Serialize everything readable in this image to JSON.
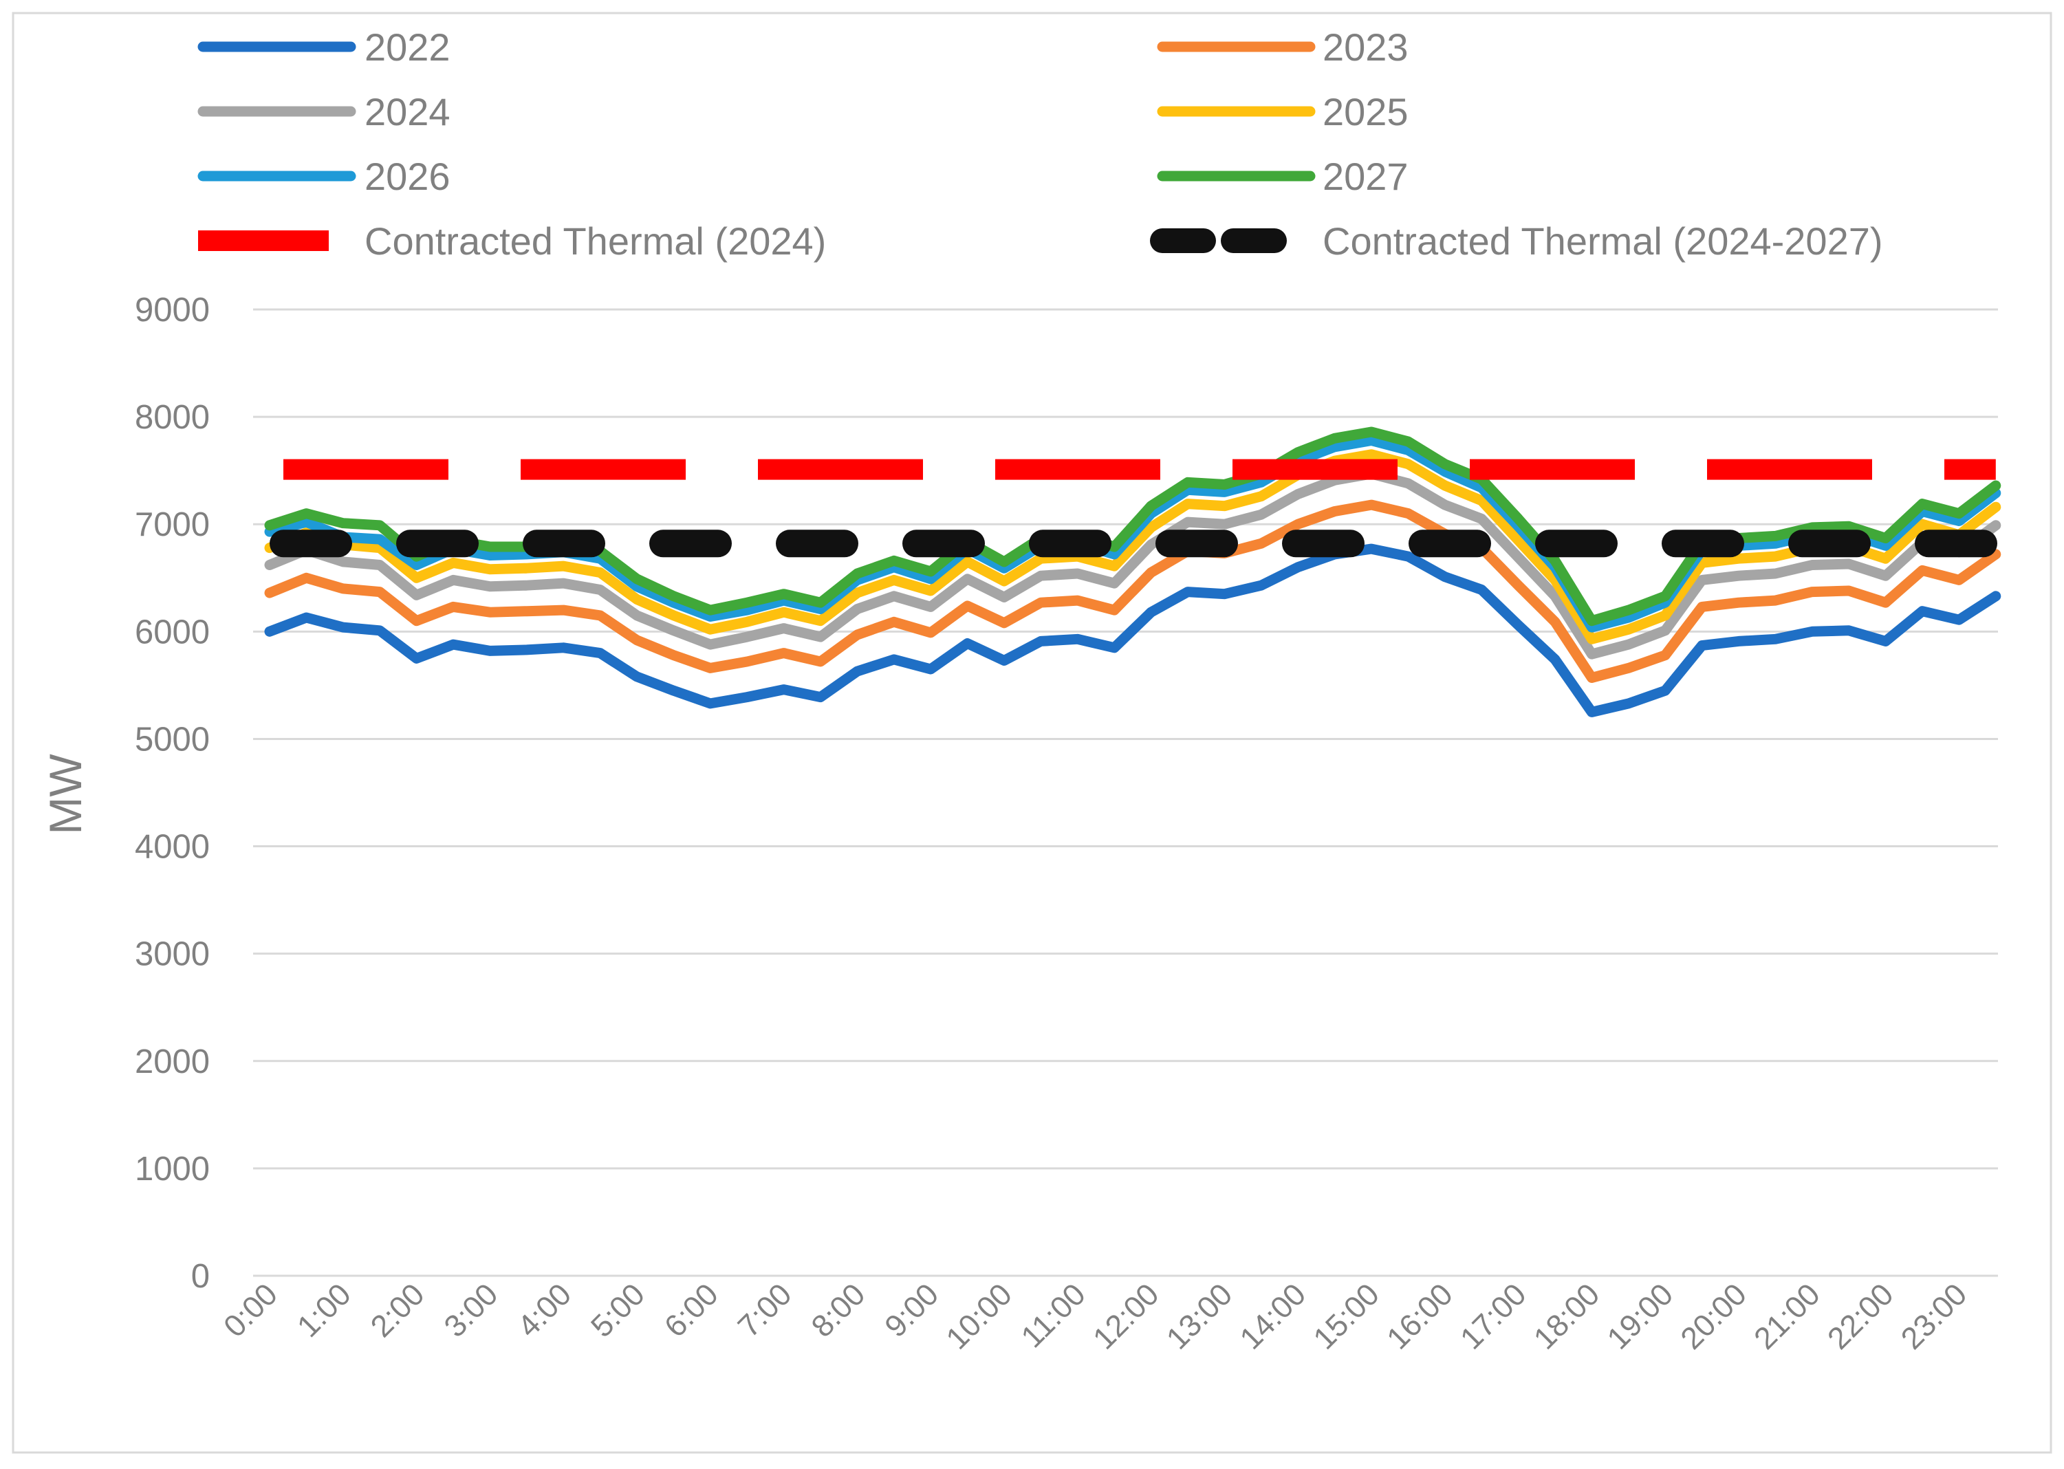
{
  "chart_data": {
    "type": "line",
    "title": "",
    "xlabel": "",
    "ylabel": "MW",
    "ylim": [
      0,
      9000
    ],
    "yticks": [
      0,
      1000,
      2000,
      3000,
      4000,
      5000,
      6000,
      7000,
      8000,
      9000
    ],
    "grid": "horizontal",
    "legend_position": "top",
    "categories": [
      "0:00",
      "0:30",
      "1:00",
      "1:30",
      "2:00",
      "2:30",
      "3:00",
      "3:30",
      "4:00",
      "4:30",
      "5:00",
      "5:30",
      "6:00",
      "6:30",
      "7:00",
      "7:30",
      "8:00",
      "8:30",
      "9:00",
      "9:30",
      "10:00",
      "10:30",
      "11:00",
      "11:30",
      "12:00",
      "12:30",
      "13:00",
      "13:30",
      "14:00",
      "14:30",
      "15:00",
      "15:30",
      "16:00",
      "16:30",
      "17:00",
      "17:30",
      "18:00",
      "18:30",
      "19:00",
      "19:30",
      "20:00",
      "20:30",
      "21:00",
      "21:30",
      "22:00",
      "22:30",
      "23:00",
      "23:30"
    ],
    "tick_labels": [
      "0:00",
      "1:00",
      "2:00",
      "3:00",
      "4:00",
      "5:00",
      "6:00",
      "7:00",
      "8:00",
      "9:00",
      "10:00",
      "11:00",
      "12:00",
      "13:00",
      "14:00",
      "15:00",
      "16:00",
      "17:00",
      "18:00",
      "19:00",
      "20:00",
      "21:00",
      "22:00",
      "23:00"
    ],
    "series": [
      {
        "name": "2022",
        "color": "#1f6fc5",
        "style": "solid",
        "values": [
          6000,
          6130,
          6040,
          6010,
          5750,
          5880,
          5820,
          5830,
          5850,
          5800,
          5580,
          5450,
          5330,
          5390,
          5460,
          5390,
          5630,
          5740,
          5650,
          5890,
          5730,
          5910,
          5930,
          5850,
          6180,
          6370,
          6350,
          6430,
          6600,
          6720,
          6770,
          6700,
          6510,
          6390,
          6060,
          5740,
          5250,
          5330,
          5450,
          5870,
          5910,
          5930,
          6000,
          6010,
          5910,
          6190,
          6110,
          6330
        ]
      },
      {
        "name": "2023",
        "color": "#f58433",
        "style": "solid",
        "values": [
          6360,
          6500,
          6400,
          6370,
          6100,
          6230,
          6180,
          6190,
          6200,
          6150,
          5920,
          5780,
          5660,
          5720,
          5800,
          5720,
          5970,
          6090,
          5990,
          6240,
          6080,
          6270,
          6290,
          6200,
          6550,
          6750,
          6730,
          6820,
          7000,
          7120,
          7180,
          7100,
          6910,
          6780,
          6430,
          6090,
          5570,
          5660,
          5780,
          6230,
          6270,
          6290,
          6370,
          6380,
          6270,
          6570,
          6480,
          6720
        ]
      },
      {
        "name": "2024",
        "color": "#a5a5a5",
        "style": "solid",
        "values": [
          6620,
          6760,
          6650,
          6620,
          6340,
          6480,
          6420,
          6430,
          6450,
          6390,
          6150,
          6010,
          5880,
          5950,
          6030,
          5950,
          6210,
          6330,
          6230,
          6490,
          6320,
          6520,
          6540,
          6450,
          6810,
          7020,
          7000,
          7090,
          7280,
          7410,
          7470,
          7380,
          7180,
          7050,
          6690,
          6330,
          5790,
          5880,
          6010,
          6480,
          6520,
          6540,
          6620,
          6630,
          6520,
          6830,
          6740,
          6990
        ]
      },
      {
        "name": "2025",
        "color": "#fec00f",
        "style": "solid",
        "values": [
          6780,
          6920,
          6810,
          6780,
          6500,
          6640,
          6580,
          6590,
          6610,
          6550,
          6300,
          6150,
          6020,
          6090,
          6180,
          6100,
          6360,
          6480,
          6380,
          6650,
          6470,
          6680,
          6700,
          6610,
          6970,
          7190,
          7170,
          7260,
          7460,
          7590,
          7650,
          7560,
          7360,
          7220,
          6850,
          6480,
          5930,
          6020,
          6150,
          6640,
          6680,
          6700,
          6780,
          6790,
          6680,
          7000,
          6900,
          7160
        ]
      },
      {
        "name": "2026",
        "color": "#1e9ad7",
        "style": "solid",
        "values": [
          6930,
          7020,
          6880,
          6860,
          6620,
          6770,
          6710,
          6720,
          6740,
          6680,
          6420,
          6270,
          6140,
          6200,
          6290,
          6210,
          6480,
          6600,
          6490,
          6770,
          6590,
          6800,
          6820,
          6720,
          7100,
          7320,
          7300,
          7390,
          7590,
          7720,
          7780,
          7690,
          7490,
          7340,
          6980,
          6600,
          6040,
          6130,
          6270,
          6760,
          6800,
          6820,
          6900,
          6910,
          6800,
          7120,
          7030,
          7290
        ]
      },
      {
        "name": "2027",
        "color": "#40a839",
        "style": "solid",
        "values": [
          6990,
          7100,
          7010,
          6990,
          6700,
          6850,
          6790,
          6790,
          6810,
          6750,
          6490,
          6330,
          6200,
          6270,
          6350,
          6270,
          6540,
          6660,
          6560,
          6840,
          6650,
          6870,
          6890,
          6790,
          7170,
          7390,
          7370,
          7470,
          7670,
          7800,
          7860,
          7770,
          7560,
          7420,
          7050,
          6660,
          6100,
          6200,
          6330,
          6830,
          6870,
          6890,
          6970,
          6980,
          6870,
          7190,
          7100,
          7360
        ]
      },
      {
        "name": "Contracted Thermal (2024)",
        "color": "#ff0000",
        "style": "dashed",
        "values": [
          7510,
          7510,
          7510,
          7510,
          7510,
          7510,
          7510,
          7510,
          7510,
          7510,
          7510,
          7510,
          7510,
          7510,
          7510,
          7510,
          7510,
          7510,
          7510,
          7510,
          7510,
          7510,
          7510,
          7510,
          7510,
          7510,
          7510,
          7510,
          7510,
          7510,
          7510,
          7510,
          7510,
          7510,
          7510,
          7510,
          7510,
          7510,
          7510,
          7510,
          7510,
          7510,
          7510,
          7510,
          7510,
          7510,
          7510,
          7510
        ]
      },
      {
        "name": "Contracted Thermal (2024-2027)",
        "color": "#111111",
        "style": "round-dashed",
        "values": [
          6820,
          6820,
          6820,
          6820,
          6820,
          6820,
          6820,
          6820,
          6820,
          6820,
          6820,
          6820,
          6820,
          6820,
          6820,
          6820,
          6820,
          6820,
          6820,
          6820,
          6820,
          6820,
          6820,
          6820,
          6820,
          6820,
          6820,
          6820,
          6820,
          6820,
          6820,
          6820,
          6820,
          6820,
          6820,
          6820,
          6820,
          6820,
          6820,
          6820,
          6820,
          6820,
          6820,
          6820,
          6820,
          6820,
          6820,
          6820
        ]
      }
    ]
  }
}
